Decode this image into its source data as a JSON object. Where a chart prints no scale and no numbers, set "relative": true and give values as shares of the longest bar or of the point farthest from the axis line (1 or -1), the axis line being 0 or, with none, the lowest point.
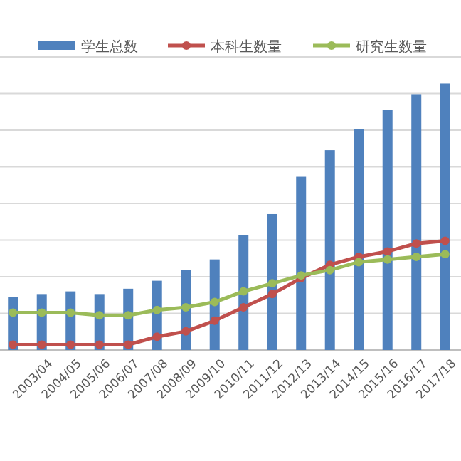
{
  "chart_data": {
    "type": "bar",
    "relative": true,
    "grid": "y",
    "legend": "top",
    "marker": "circle",
    "categories": [
      null,
      "2003/04",
      "2004/05",
      "2005/06",
      "2006/07",
      "2007/08",
      "2008/09",
      "2009/10",
      "2010/11",
      "2011/12",
      "2012/13",
      "2013/14",
      "2014/15",
      "2015/16",
      "2016/17",
      "2017/18"
    ],
    "series": [
      {
        "name": "学生总数",
        "color": "#4f81bd",
        "values": [
          0.2,
          0.21,
          0.22,
          0.21,
          0.23,
          0.26,
          0.3,
          0.34,
          0.43,
          0.51,
          0.65,
          0.75,
          0.83,
          0.9,
          0.96,
          1.0
        ]
      },
      {
        "name": "本科生数量",
        "type": "line",
        "color": "#c0504d",
        "values": [
          0.02,
          0.02,
          0.02,
          0.02,
          0.02,
          0.05,
          0.07,
          0.11,
          0.16,
          0.21,
          0.27,
          0.32,
          0.35,
          0.37,
          0.4,
          0.41
        ]
      },
      {
        "name": "研究生数量",
        "type": "line",
        "color": "#9bbb59",
        "values": [
          0.14,
          0.14,
          0.14,
          0.13,
          0.13,
          0.15,
          0.16,
          0.18,
          0.22,
          0.25,
          0.28,
          0.3,
          0.33,
          0.34,
          0.35,
          0.36
        ]
      }
    ]
  }
}
